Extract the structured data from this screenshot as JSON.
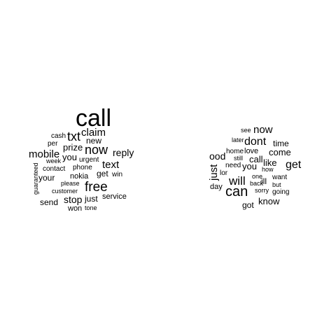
{
  "clouds": [
    {
      "words": [
        "call",
        "txt",
        "claim",
        "cash",
        "new",
        "per",
        "prize",
        "now",
        "reply",
        "mobile",
        "you",
        "urgent",
        "text",
        "week",
        "guaranteed",
        "contact",
        "phone",
        "nokia",
        "get",
        "win",
        "your",
        "please",
        "free",
        "customer",
        "service",
        "send",
        "stop",
        "just",
        "won",
        "tone"
      ]
    },
    {
      "words": [
        "see",
        "now",
        "later",
        "dont",
        "time",
        "ood",
        "home",
        "love",
        "come",
        "just",
        "still",
        "call",
        "need",
        "you",
        "like",
        "get",
        "how",
        "lor",
        "one",
        "will",
        "want",
        "day",
        "back",
        "ill",
        "but",
        "can",
        "sorry",
        "going",
        "know",
        "got"
      ]
    }
  ]
}
